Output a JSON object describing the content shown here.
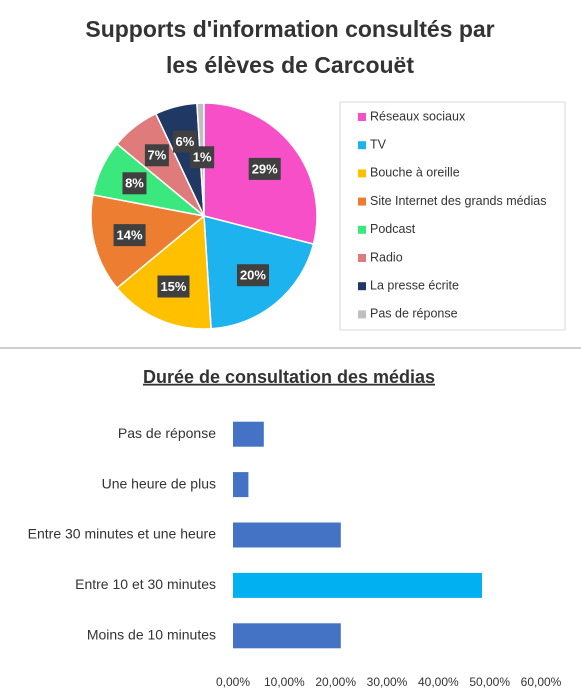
{
  "chart_data": [
    {
      "type": "pie",
      "title": [
        "Supports d'information consultés par",
        "les élèves de Carcouët"
      ],
      "categories": [
        "Réseaux sociaux",
        "TV",
        "Bouche à oreille",
        "Site Internet des grands médias",
        "Podcast",
        "Radio",
        "La presse écrite",
        "Pas de réponse"
      ],
      "values": [
        29,
        20,
        15,
        14,
        8,
        7,
        6,
        1
      ],
      "value_labels": [
        "29%",
        "20%",
        "15%",
        "14%",
        "8%",
        "7%",
        "6%",
        "1%"
      ],
      "colors": [
        "#f74fc7",
        "#1cb3ef",
        "#ffc000",
        "#ed7d31",
        "#3ae87d",
        "#e07b7b",
        "#1f3864",
        "#bfbfbf"
      ],
      "legend": "right"
    },
    {
      "type": "hbar",
      "title": "Durée de consultation des médias",
      "categories": [
        "Pas de réponse",
        "Une heure de plus",
        "Entre 30 minutes et une heure",
        "Entre 10 et 30 minutes",
        "Moins de 10 minutes"
      ],
      "values": [
        6,
        3,
        21,
        48.5,
        21
      ],
      "colors": [
        "#4472c4",
        "#4472c4",
        "#4472c4",
        "#00b0f0",
        "#4472c4"
      ],
      "xlim": [
        0,
        60
      ],
      "xticks": [
        {
          "value": 0,
          "label": "0,00%"
        },
        {
          "value": 10,
          "label": "10,00%"
        },
        {
          "value": 20,
          "label": "20,00%"
        },
        {
          "value": 30,
          "label": "30,00%"
        },
        {
          "value": 40,
          "label": "40,00%"
        },
        {
          "value": 50,
          "label": "50,00%"
        },
        {
          "value": 60,
          "label": "60,00%"
        }
      ]
    }
  ]
}
